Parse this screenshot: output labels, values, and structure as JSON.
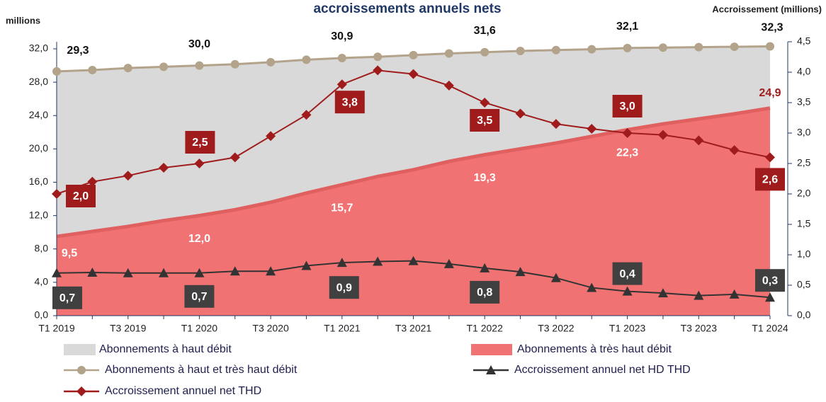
{
  "chart_data": {
    "type": "combo",
    "title": "accroissements annuels nets",
    "ylabel": "millions",
    "y2label": "Accroissement (millions)",
    "categories": [
      "T1 2019",
      null,
      "T3 2019",
      null,
      "T1 2020",
      null,
      "T3 2020",
      null,
      "T1 2021",
      null,
      "T3 2021",
      null,
      "T1 2022",
      null,
      "T3 2022",
      null,
      "T1 2023",
      null,
      "T3 2023",
      null,
      "T1 2024"
    ],
    "ylim": [
      0,
      32.85
    ],
    "yticks": [
      {
        "value": 0,
        "label": "0,0"
      },
      {
        "value": 4,
        "label": "4,0"
      },
      {
        "value": 8,
        "label": "8,0"
      },
      {
        "value": 12,
        "label": "12,0"
      },
      {
        "value": 16,
        "label": "16,0"
      },
      {
        "value": 20,
        "label": "20,0"
      },
      {
        "value": 24,
        "label": "24,0"
      },
      {
        "value": 28,
        "label": "28,0"
      },
      {
        "value": 32,
        "label": "32,0"
      }
    ],
    "y2lim": [
      0,
      4.5
    ],
    "y2ticks": [
      {
        "value": 0,
        "label": "0,0"
      },
      {
        "value": 0.5,
        "label": "0,5"
      },
      {
        "value": 1,
        "label": "1,0"
      },
      {
        "value": 1.5,
        "label": "1,5"
      },
      {
        "value": 2,
        "label": "2,0"
      },
      {
        "value": 2.5,
        "label": "2,5"
      },
      {
        "value": 3,
        "label": "3,0"
      },
      {
        "value": 3.5,
        "label": "3,5"
      },
      {
        "value": 4,
        "label": "4,0"
      },
      {
        "value": 4.5,
        "label": "4,5"
      }
    ],
    "series": [
      {
        "name": "Abonnements à haut débit",
        "kind": "area",
        "stacked_on": 1,
        "color": "#d9d9d9",
        "values": [
          19.8,
          19.35,
          19.0,
          18.45,
          18.0,
          17.45,
          16.8,
          16.0,
          15.2,
          14.35,
          13.75,
          12.95,
          12.3,
          11.75,
          11.15,
          10.45,
          9.8,
          9.15,
          8.6,
          8.05,
          7.4
        ]
      },
      {
        "name": "Abonnements à très haut débit",
        "kind": "area",
        "color": "#f07272",
        "values": [
          9.5,
          10.1,
          10.7,
          11.4,
          12.0,
          12.7,
          13.6,
          14.7,
          15.7,
          16.7,
          17.5,
          18.5,
          19.3,
          20.0,
          20.7,
          21.5,
          22.3,
          23.0,
          23.6,
          24.2,
          24.9
        ],
        "value_labels": [
          "9,5",
          null,
          null,
          null,
          "12,0",
          null,
          null,
          null,
          "15,7",
          null,
          null,
          null,
          "19,3",
          null,
          null,
          null,
          "22,3",
          null,
          null,
          null,
          "24,9"
        ]
      },
      {
        "name": "Abonnements à haut et très haut débit",
        "kind": "line",
        "marker": "circle",
        "color": "#b3a38b",
        "values": [
          29.3,
          29.45,
          29.7,
          29.85,
          30.0,
          30.15,
          30.4,
          30.7,
          30.9,
          31.05,
          31.25,
          31.45,
          31.6,
          31.75,
          31.85,
          31.95,
          32.1,
          32.15,
          32.2,
          32.25,
          32.3
        ],
        "value_labels": [
          "29,3",
          null,
          null,
          null,
          "30,0",
          null,
          null,
          null,
          "30,9",
          null,
          null,
          null,
          "31,6",
          null,
          null,
          null,
          "32,1",
          null,
          null,
          null,
          "32,3"
        ]
      },
      {
        "name": "Accroissement annuel net HD THD",
        "kind": "line",
        "marker": "triangle",
        "axis": "y2",
        "color": "#333333",
        "values": [
          0.7,
          0.71,
          0.7,
          0.7,
          0.7,
          0.73,
          0.73,
          0.82,
          0.87,
          0.89,
          0.9,
          0.85,
          0.78,
          0.72,
          0.62,
          0.46,
          0.4,
          0.37,
          0.33,
          0.35,
          0.3
        ],
        "value_labels": [
          "0,7",
          null,
          null,
          null,
          "0,7",
          null,
          null,
          null,
          "0,9",
          null,
          null,
          null,
          "0,8",
          null,
          null,
          null,
          "0,4",
          null,
          null,
          null,
          "0,3"
        ]
      },
      {
        "name": "Accroissement annuel net THD",
        "kind": "line",
        "marker": "diamond",
        "axis": "y2",
        "color": "#a01c1c",
        "values": [
          2.0,
          2.2,
          2.3,
          2.43,
          2.5,
          2.6,
          2.95,
          3.3,
          3.8,
          4.03,
          3.97,
          3.78,
          3.5,
          3.32,
          3.15,
          3.07,
          3.0,
          2.97,
          2.88,
          2.72,
          2.6
        ],
        "value_labels": [
          "2,0",
          null,
          null,
          null,
          "2,5",
          null,
          null,
          null,
          "3,8",
          null,
          null,
          null,
          "3,5",
          null,
          null,
          null,
          "3,0",
          null,
          null,
          null,
          "2,6"
        ]
      }
    ]
  }
}
